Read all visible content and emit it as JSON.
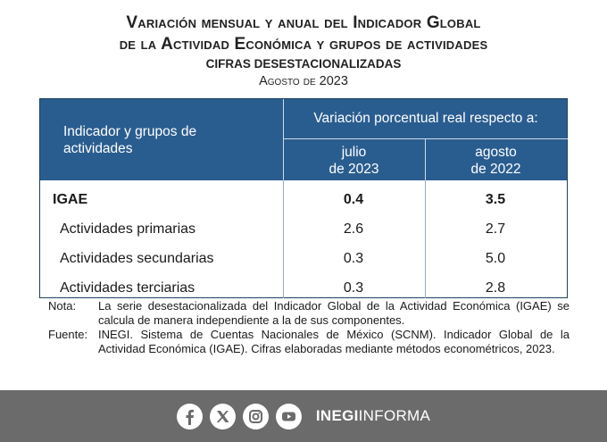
{
  "title": {
    "line1": "Variación mensual y anual del Indicador Global",
    "line2": "de la Actividad Económica y grupos de actividades",
    "subtitle": "CIFRAS DESESTACIONALIZADAS",
    "period": "Agosto de 2023"
  },
  "table": {
    "header_indicator": "Indicador y grupos de actividades",
    "header_variation": "Variación porcentual real respecto a:",
    "col1_line1": "julio",
    "col1_line2": "de 2023",
    "col2_line1": "agosto",
    "col2_line2": "de 2022",
    "rows": [
      {
        "label": "IGAE",
        "v1": "0.4",
        "v2": "3.5"
      },
      {
        "label": "Actividades primarias",
        "v1": "2.6",
        "v2": "2.7"
      },
      {
        "label": "Actividades secundarias",
        "v1": "0.3",
        "v2": "5.0"
      },
      {
        "label": "Actividades terciarias",
        "v1": "0.3",
        "v2": "2.8"
      }
    ]
  },
  "notes": {
    "nota_key": "Nota:",
    "nota_text": "La serie desestacionalizada del Indicador Global de la Actividad Económica (IGAE) se calcula de manera independiente a la de sus componentes.",
    "fuente_key": "Fuente:",
    "fuente_text": "INEGI. Sistema de Cuentas Nacionales de México (SCNM). Indicador Global de la Actividad Económica (IGAE). Cifras elaboradas mediante métodos econométricos, 2023."
  },
  "footer": {
    "brand_bold": "INEGI",
    "brand_rest": "INFORMA",
    "icons": [
      "facebook-icon",
      "x-icon",
      "instagram-icon",
      "youtube-icon"
    ]
  },
  "colors": {
    "header_bg": "#2a5d8f",
    "footer_bg": "#6b6b6b"
  }
}
